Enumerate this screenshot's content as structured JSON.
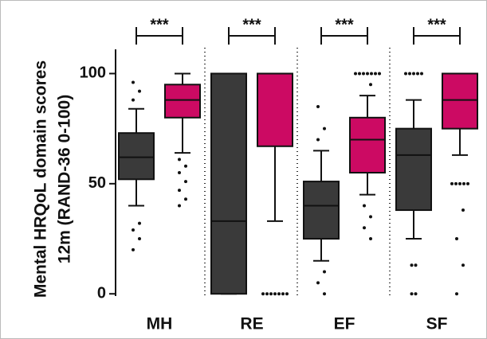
{
  "chart_data": {
    "type": "box",
    "ylabel": [
      "Mental HRQoL domain scores",
      "12m (RAND-36 0-100)"
    ],
    "categories": [
      "MH",
      "RE",
      "EF",
      "SF"
    ],
    "significance": [
      "***",
      "***",
      "***",
      "***"
    ],
    "ylim": [
      -1,
      111
    ],
    "yticks": [
      0,
      50,
      100
    ],
    "series": [
      {
        "color": "#3a3a3a",
        "boxes": [
          {
            "whislo": 40,
            "q1": 52,
            "med": 62,
            "q3": 73,
            "whishi": 84,
            "fliers": [
              96,
              92,
              88,
              32,
              29,
              25,
              20
            ]
          },
          {
            "whislo": 0,
            "q1": 0,
            "med": 33,
            "q3": 100,
            "whishi": 100,
            "fliers": []
          },
          {
            "whislo": 15,
            "q1": 25,
            "med": 40,
            "q3": 51,
            "whishi": 65,
            "fliers": [
              85,
              75,
              70,
              10,
              5,
              0
            ]
          },
          {
            "whislo": 25,
            "q1": 38,
            "med": 63,
            "q3": 75,
            "whishi": 88,
            "fliers": [
              100,
              100,
              100,
              100,
              100,
              13,
              13,
              0,
              0
            ]
          }
        ]
      },
      {
        "color": "#cc0a63",
        "boxes": [
          {
            "whislo": 64,
            "q1": 80,
            "med": 88,
            "q3": 95,
            "whishi": 100,
            "fliers": [
              61,
              58,
              55,
              51,
              47,
              43,
              40
            ]
          },
          {
            "whislo": 33,
            "q1": 67,
            "med": 100,
            "q3": 100,
            "whishi": 100,
            "fliers": [
              0,
              0,
              0,
              0,
              0,
              0,
              0
            ]
          },
          {
            "whislo": 45,
            "q1": 55,
            "med": 70,
            "q3": 80,
            "whishi": 90,
            "fliers": [
              100,
              100,
              100,
              100,
              100,
              100,
              100,
              95,
              40,
              35,
              30,
              25
            ]
          },
          {
            "whislo": 63,
            "q1": 75,
            "med": 88,
            "q3": 100,
            "whishi": 100,
            "fliers": [
              50,
              50,
              50,
              50,
              50,
              38,
              25,
              13,
              0
            ]
          }
        ]
      }
    ]
  }
}
